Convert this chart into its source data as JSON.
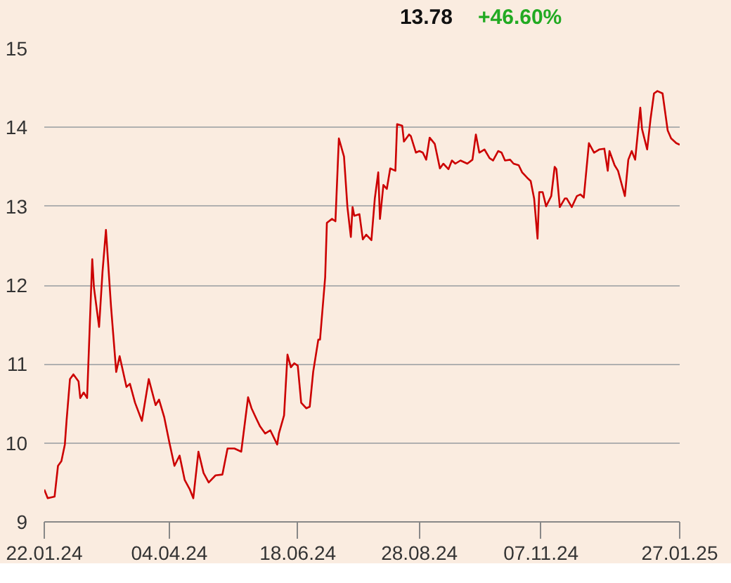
{
  "chart_data": {
    "type": "line",
    "annotations": [
      "13.78",
      "+46.60%"
    ],
    "xlim": [
      "2024-01-22",
      "2025-01-27"
    ],
    "xticks": [
      {
        "value": "2024-01-22",
        "label": "22.01.24"
      },
      {
        "value": "2024-04-04",
        "label": "04.04.24"
      },
      {
        "value": "2024-06-18",
        "label": "18.06.24"
      },
      {
        "value": "2024-08-28",
        "label": "28.08.24"
      },
      {
        "value": "2024-11-07",
        "label": "07.11.24"
      },
      {
        "value": "2025-01-27",
        "label": "27.01.25"
      }
    ],
    "ylim": [
      9,
      15
    ],
    "yticks": [
      9,
      10,
      11,
      12,
      13,
      14,
      15
    ],
    "grid": "y",
    "series": [
      {
        "color": "#cc0000",
        "x": [
          "2024-01-22",
          "2024-01-24",
          "2024-01-28",
          "2024-01-30",
          "2024-02-01",
          "2024-02-03",
          "2024-02-04",
          "2024-02-06",
          "2024-02-08",
          "2024-02-11",
          "2024-02-12",
          "2024-02-14",
          "2024-02-16",
          "2024-02-19",
          "2024-02-20",
          "2024-02-23",
          "2024-02-25",
          "2024-02-27",
          "2024-03-01",
          "2024-03-04",
          "2024-03-06",
          "2024-03-10",
          "2024-03-12",
          "2024-03-15",
          "2024-03-19",
          "2024-03-23",
          "2024-03-27",
          "2024-03-29",
          "2024-04-01",
          "2024-04-04",
          "2024-04-07",
          "2024-04-10",
          "2024-04-13",
          "2024-04-16",
          "2024-04-18",
          "2024-04-21",
          "2024-04-24",
          "2024-04-27",
          "2024-05-01",
          "2024-05-05",
          "2024-05-08",
          "2024-05-12",
          "2024-05-16",
          "2024-05-20",
          "2024-05-22",
          "2024-05-25",
          "2024-05-27",
          "2024-05-30",
          "2024-06-02",
          "2024-06-06",
          "2024-06-07",
          "2024-06-10",
          "2024-06-12",
          "2024-06-14",
          "2024-06-16",
          "2024-06-18",
          "2024-06-20",
          "2024-06-23",
          "2024-06-25",
          "2024-06-27",
          "2024-06-30",
          "2024-07-01",
          "2024-07-04",
          "2024-07-05",
          "2024-07-08",
          "2024-07-10",
          "2024-07-12",
          "2024-07-15",
          "2024-07-17",
          "2024-07-19",
          "2024-07-20",
          "2024-07-21",
          "2024-07-24",
          "2024-07-26",
          "2024-07-28",
          "2024-07-31",
          "2024-08-02",
          "2024-08-04",
          "2024-08-05",
          "2024-08-07",
          "2024-08-09",
          "2024-08-11",
          "2024-08-14",
          "2024-08-15",
          "2024-08-18",
          "2024-08-19",
          "2024-08-22",
          "2024-08-23",
          "2024-08-26",
          "2024-08-28",
          "2024-08-30",
          "2024-09-01",
          "2024-09-03",
          "2024-09-06",
          "2024-09-09",
          "2024-09-11",
          "2024-09-14",
          "2024-09-16",
          "2024-09-18",
          "2024-09-21",
          "2024-09-25",
          "2024-09-28",
          "2024-09-30",
          "2024-10-02",
          "2024-10-05",
          "2024-10-08",
          "2024-10-10",
          "2024-10-13",
          "2024-10-15",
          "2024-10-17",
          "2024-10-20",
          "2024-10-22",
          "2024-10-25",
          "2024-10-27",
          "2024-10-30",
          "2024-11-01",
          "2024-11-03",
          "2024-11-05",
          "2024-11-06",
          "2024-11-08",
          "2024-11-10",
          "2024-11-13",
          "2024-11-15",
          "2024-11-16",
          "2024-11-18",
          "2024-11-21",
          "2024-11-22",
          "2024-11-25",
          "2024-11-28",
          "2024-11-30",
          "2024-12-02",
          "2024-12-05",
          "2024-12-08",
          "2024-12-11",
          "2024-12-14",
          "2024-12-16",
          "2024-12-17",
          "2024-12-20",
          "2024-12-22",
          "2024-12-26",
          "2024-12-28",
          "2024-12-30",
          "2025-01-01",
          "2025-01-04",
          "2025-01-05",
          "2025-01-08",
          "2025-01-10",
          "2025-01-12",
          "2025-01-14",
          "2025-01-17",
          "2025-01-20",
          "2025-01-22",
          "2025-01-25",
          "2025-01-27"
        ],
        "values": [
          9.41,
          9.3,
          9.32,
          9.71,
          9.77,
          9.98,
          10.28,
          10.81,
          10.87,
          10.78,
          10.57,
          10.64,
          10.57,
          12.33,
          11.97,
          11.47,
          12.17,
          12.7,
          11.72,
          10.9,
          11.1,
          10.71,
          10.75,
          10.51,
          10.28,
          10.81,
          10.48,
          10.55,
          10.33,
          10.01,
          9.71,
          9.84,
          9.53,
          9.41,
          9.3,
          9.89,
          9.62,
          9.5,
          9.59,
          9.6,
          9.93,
          9.93,
          9.89,
          10.58,
          10.44,
          10.3,
          10.21,
          10.12,
          10.16,
          9.98,
          10.12,
          10.35,
          11.12,
          10.96,
          11.01,
          10.98,
          10.51,
          10.44,
          10.46,
          10.9,
          11.31,
          11.31,
          12.1,
          12.79,
          12.84,
          12.81,
          13.86,
          13.63,
          12.99,
          12.61,
          12.99,
          12.88,
          12.9,
          12.58,
          12.64,
          12.57,
          13.1,
          13.43,
          12.84,
          13.27,
          13.22,
          13.48,
          13.45,
          14.04,
          14.02,
          13.82,
          13.91,
          13.89,
          13.68,
          13.7,
          13.68,
          13.59,
          13.87,
          13.79,
          13.48,
          13.54,
          13.47,
          13.58,
          13.54,
          13.58,
          13.54,
          13.59,
          13.91,
          13.68,
          13.72,
          13.61,
          13.58,
          13.7,
          13.68,
          13.58,
          13.59,
          13.54,
          13.52,
          13.43,
          13.36,
          13.32,
          13.1,
          12.59,
          13.18,
          13.18,
          13.0,
          13.13,
          13.5,
          13.47,
          12.99,
          13.1,
          13.1,
          12.99,
          13.13,
          13.15,
          13.11,
          13.8,
          13.68,
          13.72,
          13.73,
          13.45,
          13.7,
          13.52,
          13.45,
          13.13,
          13.59,
          13.7,
          13.59,
          14.25,
          13.98,
          13.72,
          14.11,
          14.43,
          14.46,
          14.43,
          13.96,
          13.86,
          13.8,
          13.78
        ]
      }
    ]
  }
}
